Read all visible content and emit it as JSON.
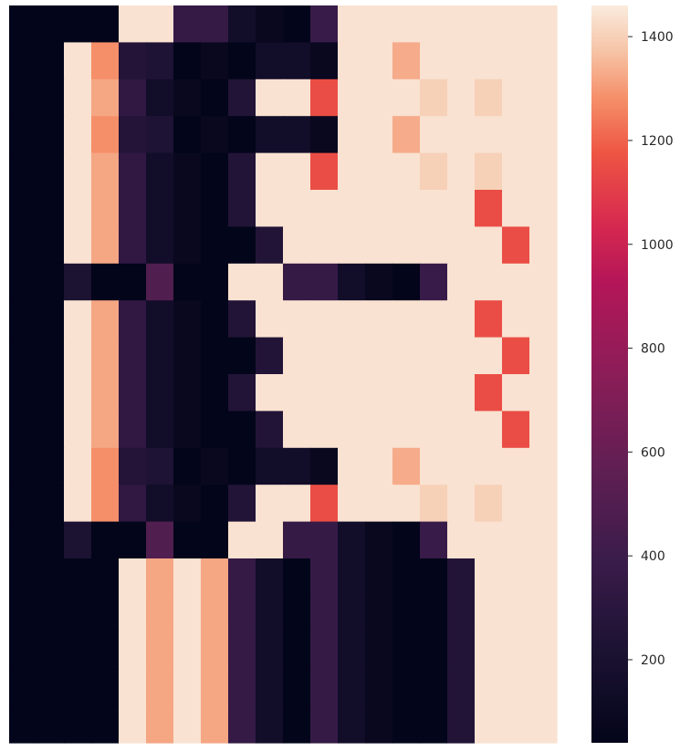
{
  "chart_data": {
    "type": "heatmap",
    "colormap": "rocket",
    "rows": 20,
    "cols": 20,
    "value_range": [
      40,
      1460
    ],
    "values": [
      [
        40,
        40,
        40,
        40,
        1440,
        1440,
        360,
        360,
        150,
        80,
        40,
        380,
        1440,
        1440,
        1440,
        1440,
        1440,
        1440,
        1440,
        1440
      ],
      [
        40,
        40,
        1440,
        1280,
        260,
        230,
        40,
        80,
        40,
        150,
        150,
        80,
        1440,
        1440,
        1330,
        1440,
        1440,
        1440,
        1440,
        1440
      ],
      [
        40,
        40,
        1440,
        1320,
        330,
        150,
        80,
        40,
        250,
        1440,
        1440,
        1150,
        1440,
        1440,
        1440,
        1400,
        1440,
        1400,
        1440,
        1440
      ],
      [
        40,
        40,
        1440,
        1280,
        260,
        230,
        40,
        80,
        40,
        150,
        150,
        80,
        1440,
        1440,
        1330,
        1440,
        1440,
        1440,
        1440,
        1440
      ],
      [
        40,
        40,
        1440,
        1320,
        330,
        150,
        80,
        40,
        250,
        1440,
        1440,
        1150,
        1440,
        1440,
        1440,
        1400,
        1440,
        1400,
        1440,
        1440
      ],
      [
        40,
        40,
        1440,
        1320,
        330,
        150,
        80,
        40,
        250,
        1440,
        1440,
        1440,
        1440,
        1440,
        1440,
        1440,
        1440,
        1150,
        1440,
        1440
      ],
      [
        40,
        40,
        1440,
        1320,
        330,
        150,
        80,
        40,
        40,
        250,
        1440,
        1440,
        1440,
        1440,
        1440,
        1440,
        1440,
        1440,
        1150,
        1440
      ],
      [
        40,
        40,
        220,
        40,
        40,
        500,
        40,
        40,
        1440,
        1440,
        360,
        360,
        150,
        80,
        40,
        380,
        1440,
        1440,
        1440,
        1440
      ],
      [
        40,
        40,
        1440,
        1320,
        330,
        150,
        80,
        40,
        250,
        1440,
        1440,
        1440,
        1440,
        1440,
        1440,
        1440,
        1440,
        1150,
        1440,
        1440
      ],
      [
        40,
        40,
        1440,
        1320,
        330,
        150,
        80,
        40,
        40,
        250,
        1440,
        1440,
        1440,
        1440,
        1440,
        1440,
        1440,
        1440,
        1150,
        1440
      ],
      [
        40,
        40,
        1440,
        1320,
        330,
        150,
        80,
        40,
        250,
        1440,
        1440,
        1440,
        1440,
        1440,
        1440,
        1440,
        1440,
        1150,
        1440,
        1440
      ],
      [
        40,
        40,
        1440,
        1320,
        330,
        150,
        80,
        40,
        40,
        250,
        1440,
        1440,
        1440,
        1440,
        1440,
        1440,
        1440,
        1440,
        1150,
        1440
      ],
      [
        40,
        40,
        1440,
        1280,
        260,
        230,
        40,
        80,
        40,
        150,
        150,
        80,
        1440,
        1440,
        1330,
        1440,
        1440,
        1440,
        1440,
        1440
      ],
      [
        40,
        40,
        1440,
        1280,
        330,
        150,
        80,
        40,
        250,
        1440,
        1440,
        1150,
        1440,
        1440,
        1440,
        1400,
        1440,
        1400,
        1440,
        1440
      ],
      [
        40,
        40,
        220,
        40,
        40,
        500,
        40,
        40,
        1440,
        1440,
        360,
        360,
        150,
        80,
        40,
        380,
        1440,
        1440,
        1440,
        1440
      ],
      [
        40,
        40,
        40,
        40,
        1440,
        1320,
        1440,
        1320,
        360,
        150,
        40,
        360,
        150,
        80,
        40,
        40,
        250,
        1440,
        1440,
        1440
      ],
      [
        40,
        40,
        40,
        40,
        1440,
        1320,
        1440,
        1320,
        360,
        150,
        40,
        360,
        150,
        80,
        40,
        40,
        250,
        1440,
        1440,
        1440
      ],
      [
        40,
        40,
        40,
        40,
        1440,
        1320,
        1440,
        1320,
        360,
        150,
        40,
        360,
        150,
        80,
        40,
        40,
        250,
        1440,
        1440,
        1440
      ],
      [
        40,
        40,
        40,
        40,
        1440,
        1320,
        1440,
        1320,
        360,
        150,
        40,
        360,
        150,
        80,
        40,
        40,
        250,
        1440,
        1440,
        1440
      ],
      [
        40,
        40,
        40,
        40,
        1440,
        1320,
        1440,
        1320,
        360,
        150,
        40,
        360,
        150,
        80,
        40,
        40,
        250,
        1440,
        1440,
        1440
      ]
    ],
    "colorbar": {
      "ticks": [
        200,
        400,
        600,
        800,
        1000,
        1200,
        1400
      ],
      "tick_labels": [
        "200",
        "400",
        "600",
        "800",
        "1000",
        "1200",
        "1400"
      ]
    },
    "title": "",
    "xlabel": "",
    "ylabel": ""
  }
}
